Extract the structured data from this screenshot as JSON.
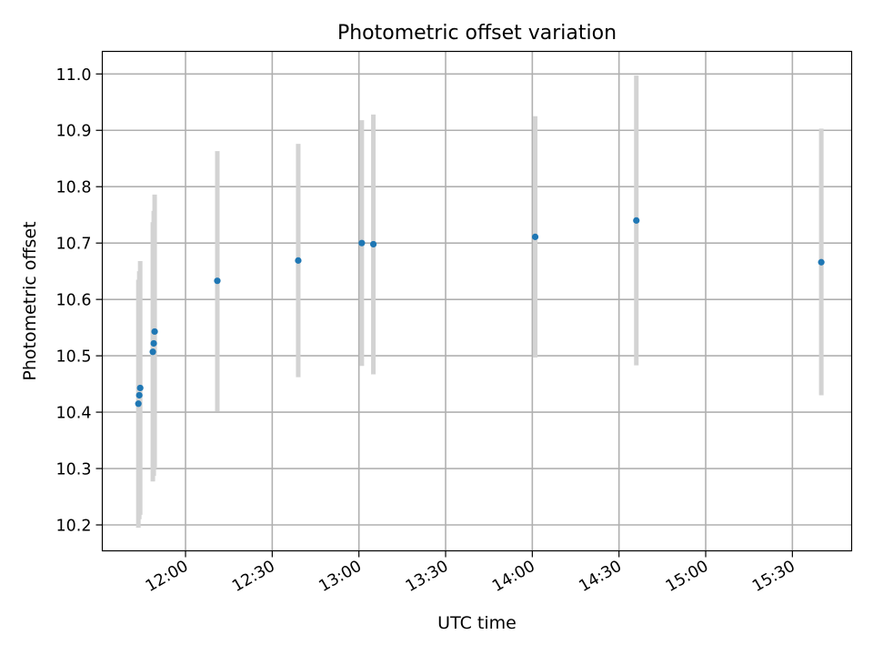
{
  "chart_data": {
    "type": "scatter",
    "title": "Photometric offset variation",
    "xlabel": "UTC time",
    "ylabel": "Photometric offset",
    "x_tick_labels": [
      "12:00",
      "12:30",
      "13:00",
      "13:30",
      "14:00",
      "14:30",
      "15:00",
      "15:30"
    ],
    "x_ticks_minutes": [
      720,
      750,
      780,
      810,
      840,
      870,
      900,
      930
    ],
    "xlim_minutes": [
      691.2,
      950.5
    ],
    "y_ticks": [
      10.2,
      10.3,
      10.4,
      10.5,
      10.6,
      10.7,
      10.8,
      10.9,
      11.0
    ],
    "ylim": [
      10.154,
      11.04
    ],
    "grid": true,
    "points": [
      {
        "time": "11:44",
        "y": 10.415,
        "err_low": 10.195,
        "err_high": 10.635
      },
      {
        "time": "11:44",
        "y": 10.43,
        "err_low": 10.21,
        "err_high": 10.65
      },
      {
        "time": "11:44",
        "y": 10.443,
        "err_low": 10.218,
        "err_high": 10.668
      },
      {
        "time": "11:49",
        "y": 10.507,
        "err_low": 10.277,
        "err_high": 10.737
      },
      {
        "time": "11:49",
        "y": 10.522,
        "err_low": 10.287,
        "err_high": 10.757
      },
      {
        "time": "11:49",
        "y": 10.543,
        "err_low": 10.3,
        "err_high": 10.786
      },
      {
        "time": "12:11",
        "y": 10.633,
        "err_low": 10.401,
        "err_high": 10.863
      },
      {
        "time": "12:39",
        "y": 10.669,
        "err_low": 10.462,
        "err_high": 10.876
      },
      {
        "time": "13:01",
        "y": 10.7,
        "err_low": 10.482,
        "err_high": 10.918
      },
      {
        "time": "13:05",
        "y": 10.698,
        "err_low": 10.467,
        "err_high": 10.928
      },
      {
        "time": "14:01",
        "y": 10.711,
        "err_low": 10.497,
        "err_high": 10.925
      },
      {
        "time": "14:36",
        "y": 10.74,
        "err_low": 10.483,
        "err_high": 10.997
      },
      {
        "time": "15:40",
        "y": 10.666,
        "err_low": 10.43,
        "err_high": 10.903
      }
    ],
    "colors": {
      "point": "#1f77b4",
      "errorbar": "#d3d3d3",
      "grid": "#b0b0b0",
      "axes": "#000000"
    }
  }
}
